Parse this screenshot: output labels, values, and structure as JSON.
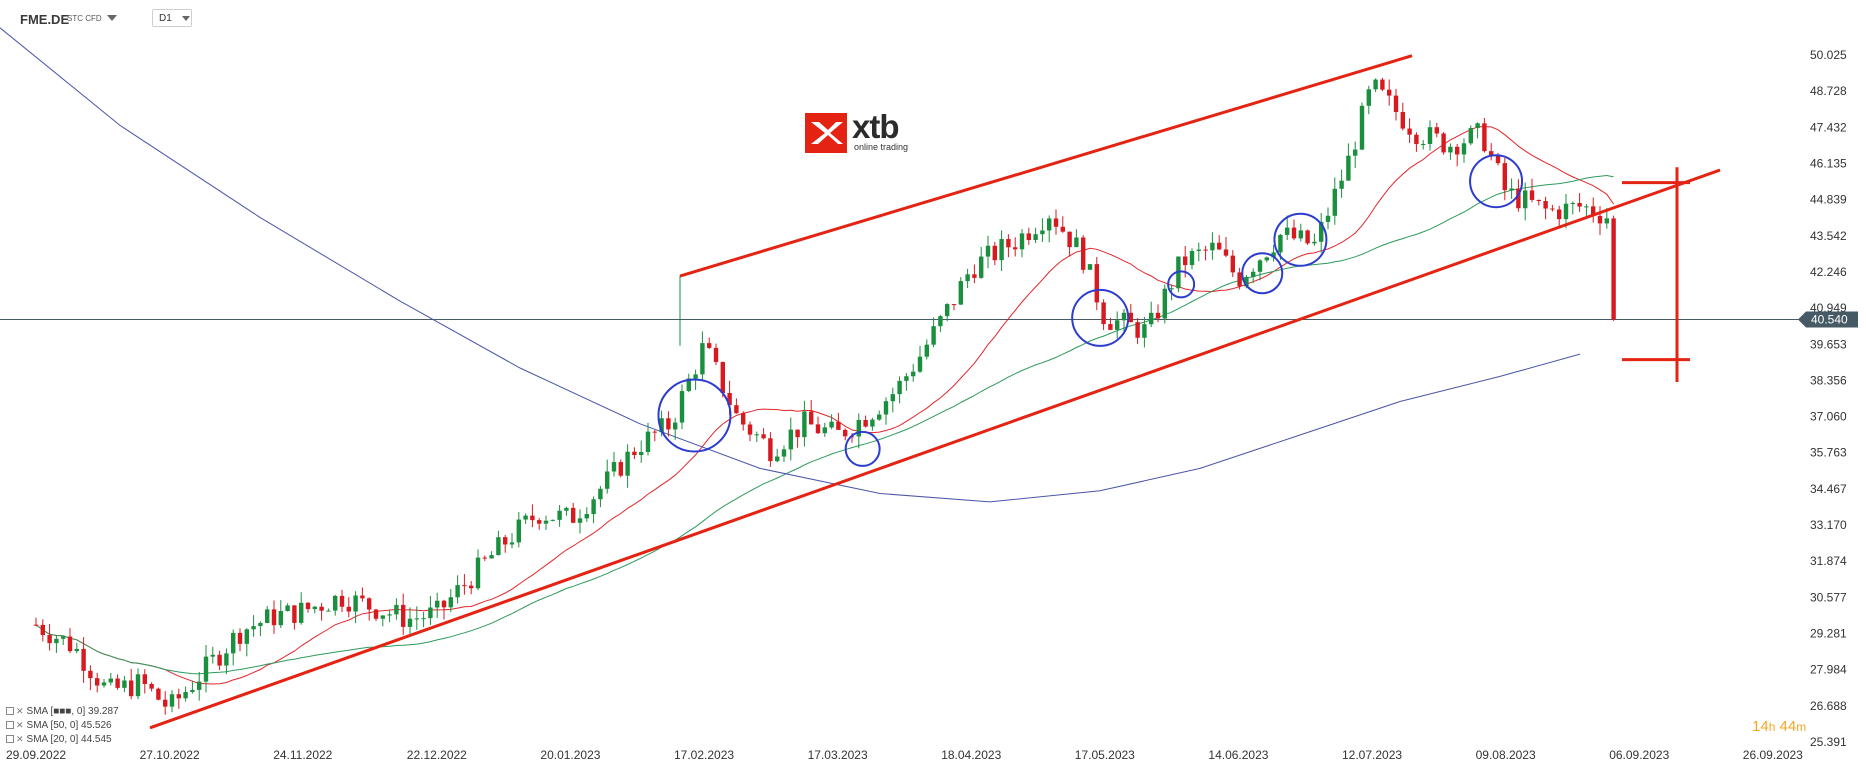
{
  "toolbar": {
    "symbol": "FME.DE",
    "instrument_type": "STC CFD",
    "timeframe": "D1"
  },
  "logo": {
    "brand": "xtb",
    "tagline": "online trading"
  },
  "legend": [
    {
      "label": "SMA [20, 0]",
      "value": "39.287",
      "shown_text": "SMA [■■■, 0] 39.287"
    },
    {
      "label": "SMA [50, 0]",
      "value": "45.526",
      "shown_text": "SMA [50, 0] 45.526"
    },
    {
      "label": "SMA [20, 0]",
      "value": "44.545",
      "shown_text": "SMA [20, 0] 44.545"
    }
  ],
  "countdown": {
    "hours": "14",
    "h_unit": "h",
    "minutes": "44",
    "m_unit": "m"
  },
  "colors": {
    "up_candle": "#1a8f3e",
    "down_candle": "#d71920",
    "sma_short": "#e2262b",
    "sma_mid": "#2e9a5c",
    "sma_long": "#4a56a8",
    "annotation_red": "#e42313",
    "annotation_circle": "#2b3ccf",
    "price_line": "#455a64",
    "price_badge": "#455a64"
  },
  "chart_data": {
    "type": "candlestick",
    "timeframe": "D1",
    "y_ticks": [
      "50.025",
      "48.728",
      "47.432",
      "46.135",
      "44.839",
      "43.542",
      "42.246",
      "40.949",
      "39.653",
      "38.356",
      "37.060",
      "35.763",
      "34.467",
      "33.170",
      "31.874",
      "30.577",
      "29.281",
      "27.984",
      "26.688",
      "25.391"
    ],
    "ylim": [
      25.391,
      50.025
    ],
    "x_ticks": [
      "29.09.2022",
      "27.10.2022",
      "24.11.2022",
      "22.12.2022",
      "20.01.2023",
      "17.02.2023",
      "17.03.2023",
      "18.04.2023",
      "17.05.2023",
      "14.06.2023",
      "12.07.2023",
      "09.08.2023",
      "06.09.2023",
      "26.09.2023"
    ],
    "current_price": "40.540",
    "closes_sampled": [
      {
        "date": "29.09.2022",
        "close": 29.6
      },
      {
        "date": "07.10.2022",
        "close": 28.8
      },
      {
        "date": "14.10.2022",
        "close": 27.2
      },
      {
        "date": "21.10.2022",
        "close": 27.5
      },
      {
        "date": "27.10.2022",
        "close": 26.6
      },
      {
        "date": "04.11.2022",
        "close": 28.1
      },
      {
        "date": "11.11.2022",
        "close": 29.4
      },
      {
        "date": "18.11.2022",
        "close": 29.9
      },
      {
        "date": "24.11.2022",
        "close": 30.1
      },
      {
        "date": "02.12.2022",
        "close": 30.6
      },
      {
        "date": "09.12.2022",
        "close": 30.2
      },
      {
        "date": "16.12.2022",
        "close": 29.8
      },
      {
        "date": "22.12.2022",
        "close": 30.0
      },
      {
        "date": "30.12.2022",
        "close": 31.4
      },
      {
        "date": "06.01.2023",
        "close": 32.6
      },
      {
        "date": "13.01.2023",
        "close": 33.6
      },
      {
        "date": "20.01.2023",
        "close": 33.4
      },
      {
        "date": "27.01.2023",
        "close": 34.6
      },
      {
        "date": "03.02.2023",
        "close": 36.0
      },
      {
        "date": "10.02.2023",
        "close": 36.8
      },
      {
        "date": "17.02.2023",
        "close": 39.6
      },
      {
        "date": "24.02.2023",
        "close": 37.0
      },
      {
        "date": "03.03.2023",
        "close": 35.9
      },
      {
        "date": "10.03.2023",
        "close": 36.8
      },
      {
        "date": "17.03.2023",
        "close": 36.4
      },
      {
        "date": "24.03.2023",
        "close": 37.1
      },
      {
        "date": "31.03.2023",
        "close": 38.0
      },
      {
        "date": "06.04.2023",
        "close": 39.3
      },
      {
        "date": "14.04.2023",
        "close": 41.3
      },
      {
        "date": "18.04.2023",
        "close": 42.4
      },
      {
        "date": "28.04.2023",
        "close": 43.4
      },
      {
        "date": "05.05.2023",
        "close": 44.4
      },
      {
        "date": "12.05.2023",
        "close": 42.9
      },
      {
        "date": "17.05.2023",
        "close": 40.6
      },
      {
        "date": "26.05.2023",
        "close": 40.1
      },
      {
        "date": "02.06.2023",
        "close": 42.6
      },
      {
        "date": "09.06.2023",
        "close": 43.1
      },
      {
        "date": "14.06.2023",
        "close": 42.0
      },
      {
        "date": "23.06.2023",
        "close": 43.6
      },
      {
        "date": "30.06.2023",
        "close": 43.2
      },
      {
        "date": "07.07.2023",
        "close": 46.2
      },
      {
        "date": "12.07.2023",
        "close": 48.9
      },
      {
        "date": "21.07.2023",
        "close": 47.3
      },
      {
        "date": "28.07.2023",
        "close": 46.8
      },
      {
        "date": "04.08.2023",
        "close": 47.2
      },
      {
        "date": "09.08.2023",
        "close": 45.1
      },
      {
        "date": "18.08.2023",
        "close": 44.4
      },
      {
        "date": "25.08.2023",
        "close": 44.6
      },
      {
        "date": "31.08.2023",
        "close": 44.2
      },
      {
        "date": "01.09.2023",
        "close": 40.5
      }
    ],
    "series": [
      {
        "name": "SMA [20, 0]",
        "value": 44.545
      },
      {
        "name": "SMA [50, 0]",
        "value": 45.526
      },
      {
        "name": "SMA [20, 0]",
        "value": 39.287
      }
    ]
  }
}
